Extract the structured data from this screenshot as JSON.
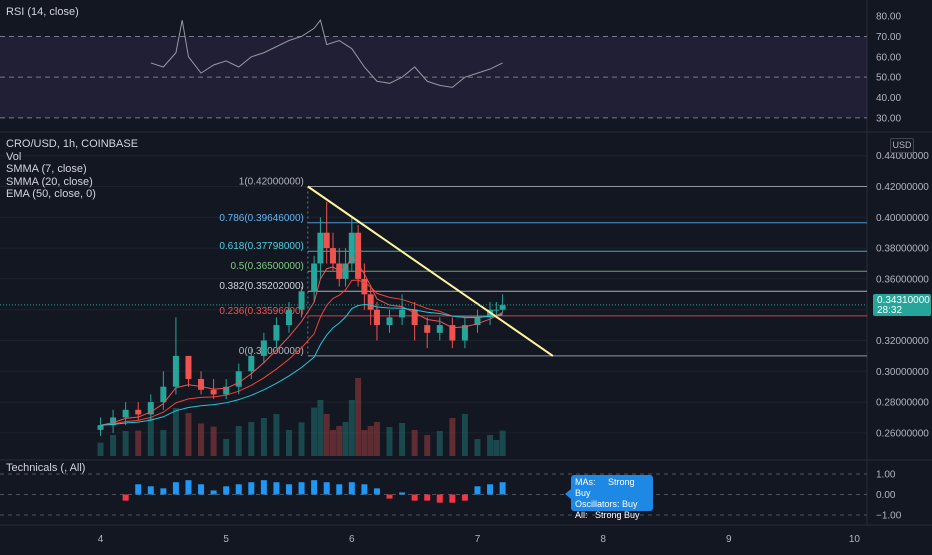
{
  "rsi_panel": {
    "title": "RSI (14, close)",
    "ticks": [
      "80.00",
      "70.00",
      "60.00",
      "50.00",
      "40.00",
      "30.00"
    ],
    "tick_values": [
      80,
      70,
      60,
      50,
      40,
      30
    ],
    "upper_band": 70,
    "lower_band": 30,
    "mid": 50
  },
  "price_panel": {
    "symbol_line": "CRO/USD, 1h, COINBASE",
    "indicators": [
      "Vol",
      "SMMA (7, close)",
      "SMMA (20, close)",
      "EMA (50, close, 0)"
    ],
    "currency": "USD",
    "ticks": [
      "0.44000000",
      "0.42000000",
      "0.40000000",
      "0.38000000",
      "0.36000000",
      "0.34000000",
      "0.32000000",
      "0.30000000",
      "0.28000000",
      "0.26000000"
    ],
    "tick_values": [
      0.44,
      0.42,
      0.4,
      0.38,
      0.36,
      0.34,
      0.32,
      0.3,
      0.28,
      0.26
    ],
    "last_price": "0.34310000",
    "countdown": "28:32",
    "fib_levels": [
      {
        "label": "1(0.42000000)",
        "value": 0.42,
        "color": "#b2b5be"
      },
      {
        "label": "0.786(0.39646000)",
        "value": 0.39646,
        "color": "#64b5f6"
      },
      {
        "label": "0.618(0.37798000)",
        "value": 0.37798,
        "color": "#4dd0e1"
      },
      {
        "label": "0.5(0.36500000)",
        "value": 0.365,
        "color": "#81c784"
      },
      {
        "label": "0.382(0.35202000)",
        "value": 0.35202,
        "color": "#d1d4dc"
      },
      {
        "label": "0.236(0.33596000)",
        "value": 0.33596,
        "color": "#ef5350"
      },
      {
        "label": "0(0.31000000)",
        "value": 0.31,
        "color": "#b2b5be"
      }
    ]
  },
  "technicals_panel": {
    "title": "Technicals (, All)",
    "ticks": [
      "1.00",
      "0.00",
      "−1.00"
    ],
    "tick_values": [
      1,
      0,
      -1
    ],
    "tooltip": {
      "mas_key": "MAs:",
      "mas_val": "Strong Buy",
      "osc_key": "Oscillators:",
      "osc_val": "Buy",
      "all_key": "All:",
      "all_val": "Strong Buy"
    }
  },
  "x_axis": {
    "ticks": [
      "4",
      "5",
      "6",
      "7",
      "8",
      "9",
      "10"
    ],
    "tick_values": [
      4,
      5,
      6,
      7,
      8,
      9,
      10
    ]
  },
  "colors": {
    "up": "#26a69a",
    "down": "#ef5350",
    "smma7": "#ef5350",
    "smma20": "#f44336",
    "ema50": "#26c6da",
    "trendline": "#fff59d",
    "rsi_line": "#9598a1",
    "tech_up": "#2196f3",
    "tech_down": "#f23645"
  },
  "chart_data": {
    "type": "line",
    "series": [
      {
        "name": "CRO/USD",
        "type": "candlestick",
        "x": [
          4.0,
          4.1,
          4.2,
          4.3,
          4.4,
          4.5,
          4.6,
          4.7,
          4.8,
          4.9,
          5.0,
          5.1,
          5.2,
          5.3,
          5.4,
          5.5,
          5.6,
          5.7,
          5.75,
          5.8,
          5.85,
          5.9,
          5.95,
          6.0,
          6.05,
          6.1,
          6.15,
          6.2,
          6.3,
          6.4,
          6.5,
          6.6,
          6.7,
          6.8,
          6.9,
          7.0,
          7.1,
          7.15,
          7.2
        ],
        "open": [
          0.262,
          0.265,
          0.27,
          0.275,
          0.272,
          0.28,
          0.29,
          0.31,
          0.295,
          0.288,
          0.285,
          0.29,
          0.3,
          0.31,
          0.32,
          0.33,
          0.34,
          0.352,
          0.37,
          0.39,
          0.38,
          0.37,
          0.36,
          0.37,
          0.39,
          0.36,
          0.35,
          0.34,
          0.33,
          0.335,
          0.34,
          0.33,
          0.325,
          0.33,
          0.32,
          0.33,
          0.335,
          0.34,
          0.34
        ],
        "close": [
          0.265,
          0.27,
          0.275,
          0.272,
          0.28,
          0.29,
          0.31,
          0.295,
          0.288,
          0.285,
          0.29,
          0.3,
          0.31,
          0.32,
          0.33,
          0.34,
          0.352,
          0.37,
          0.39,
          0.38,
          0.37,
          0.36,
          0.37,
          0.39,
          0.36,
          0.35,
          0.34,
          0.33,
          0.335,
          0.34,
          0.33,
          0.325,
          0.33,
          0.32,
          0.33,
          0.335,
          0.34,
          0.34,
          0.343
        ],
        "high": [
          0.27,
          0.275,
          0.28,
          0.28,
          0.285,
          0.3,
          0.335,
          0.31,
          0.3,
          0.295,
          0.295,
          0.305,
          0.315,
          0.325,
          0.335,
          0.345,
          0.355,
          0.375,
          0.4,
          0.41,
          0.39,
          0.38,
          0.38,
          0.4,
          0.395,
          0.37,
          0.355,
          0.345,
          0.34,
          0.35,
          0.345,
          0.335,
          0.335,
          0.335,
          0.335,
          0.34,
          0.345,
          0.345,
          0.35
        ],
        "low": [
          0.258,
          0.26,
          0.265,
          0.268,
          0.268,
          0.275,
          0.285,
          0.29,
          0.285,
          0.282,
          0.282,
          0.285,
          0.295,
          0.305,
          0.315,
          0.325,
          0.335,
          0.345,
          0.36,
          0.37,
          0.365,
          0.355,
          0.355,
          0.365,
          0.355,
          0.34,
          0.33,
          0.32,
          0.325,
          0.33,
          0.32,
          0.315,
          0.32,
          0.315,
          0.315,
          0.325,
          0.33,
          0.335,
          0.338
        ]
      }
    ],
    "xlabel": "",
    "ylabel": "",
    "xlim": [
      3.2,
      10.1
    ],
    "ylim": [
      0.245,
      0.445
    ],
    "rsi_x": [
      4.4,
      4.5,
      4.6,
      4.65,
      4.7,
      4.8,
      4.9,
      5.0,
      5.1,
      5.2,
      5.3,
      5.4,
      5.5,
      5.6,
      5.7,
      5.75,
      5.8,
      5.9,
      6.0,
      6.1,
      6.2,
      6.3,
      6.4,
      6.5,
      6.6,
      6.7,
      6.8,
      6.9,
      7.0,
      7.1,
      7.2
    ],
    "rsi_y": [
      57,
      55,
      62,
      78,
      60,
      52,
      56,
      58,
      55,
      60,
      62,
      65,
      68,
      70,
      74,
      78,
      66,
      68,
      64,
      55,
      48,
      47,
      50,
      55,
      48,
      46,
      45,
      50,
      52,
      54,
      57
    ],
    "technicals_x": [
      4.2,
      4.3,
      4.4,
      4.5,
      4.6,
      4.7,
      4.8,
      4.9,
      5.0,
      5.1,
      5.2,
      5.3,
      5.4,
      5.5,
      5.6,
      5.7,
      5.8,
      5.9,
      6.0,
      6.1,
      6.2,
      6.3,
      6.4,
      6.5,
      6.6,
      6.7,
      6.8,
      6.9,
      7.0,
      7.1,
      7.2
    ],
    "technicals_y": [
      -0.3,
      0.5,
      0.4,
      0.3,
      0.6,
      0.7,
      0.5,
      0.2,
      0.4,
      0.5,
      0.6,
      0.7,
      0.6,
      0.5,
      0.6,
      0.7,
      0.6,
      0.5,
      0.6,
      0.5,
      0.3,
      -0.2,
      0.1,
      -0.3,
      -0.3,
      -0.4,
      -0.4,
      -0.3,
      0.4,
      0.5,
      0.6
    ]
  }
}
